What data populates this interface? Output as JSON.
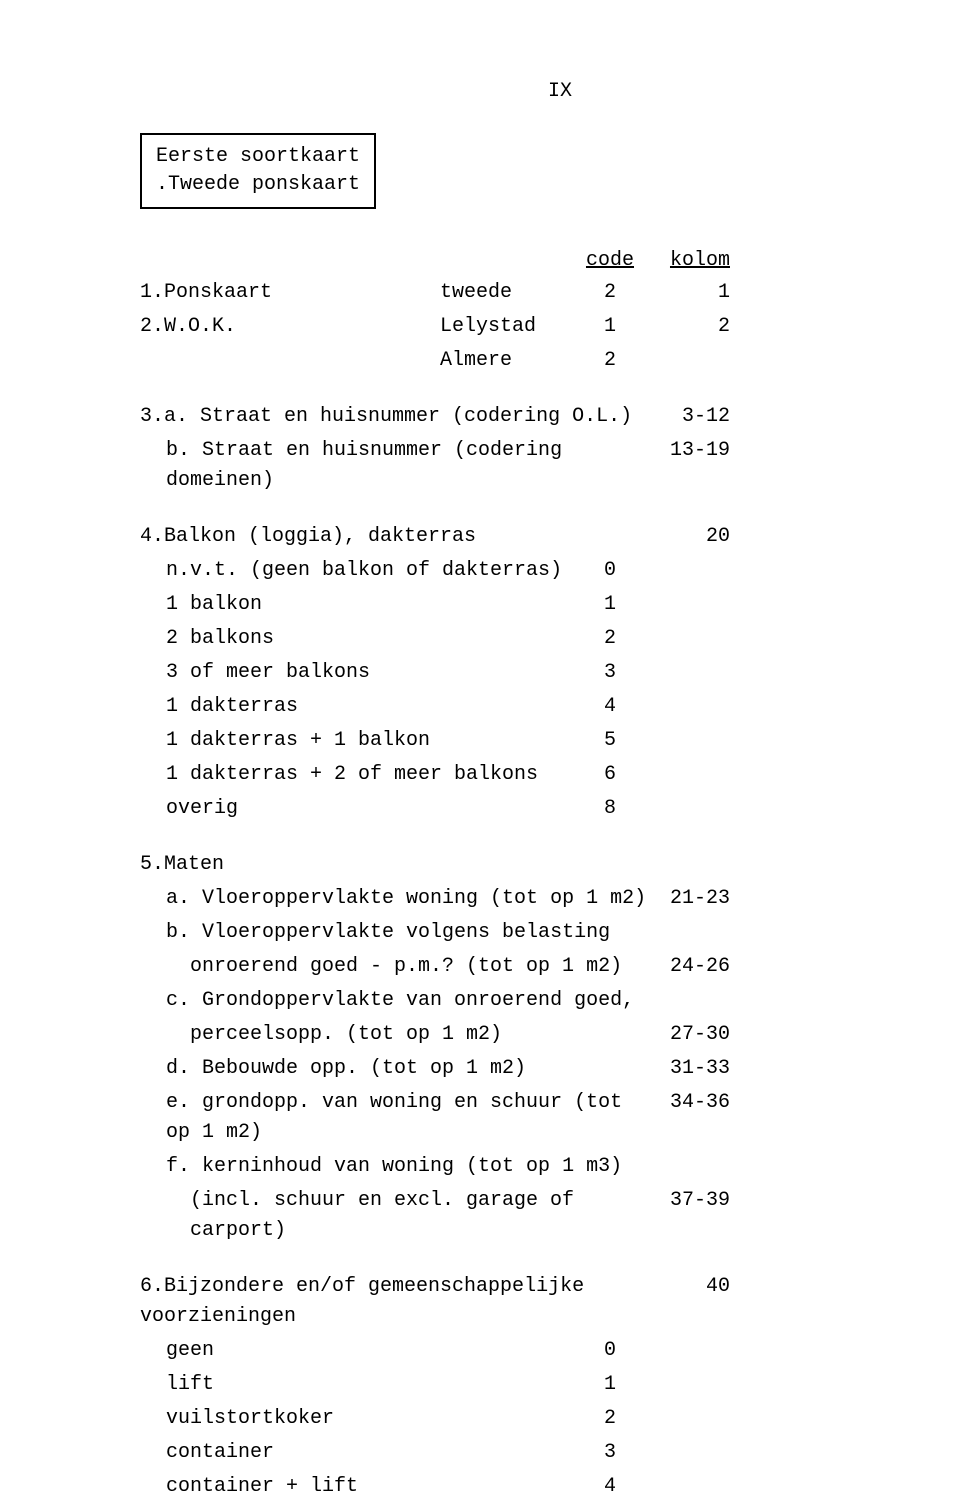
{
  "pageNumber": "IX",
  "box": {
    "line1": "Eerste soortkaart",
    "line2": ".Tweede ponskaart"
  },
  "headers": {
    "code": "code",
    "kolom": "kolom"
  },
  "section1": {
    "label": "1.Ponskaart",
    "value": "tweede",
    "code": "2",
    "kolom": "1"
  },
  "section2": {
    "label": "2.W.O.K.",
    "rows": [
      {
        "value": "Lelystad",
        "code": "1",
        "kolom": "2"
      },
      {
        "value": "Almere",
        "code": "2",
        "kolom": ""
      }
    ]
  },
  "section3": {
    "a": {
      "label": "3.a. Straat en huisnummer (codering O.L.)",
      "kolom": "3-12"
    },
    "b": {
      "label": "b. Straat en huisnummer (codering domeinen)",
      "kolom": "13-19"
    }
  },
  "section4": {
    "title": "4.Balkon (loggia), dakterras",
    "titleKolom": "20",
    "items": [
      {
        "label": "n.v.t. (geen balkon of dakterras)",
        "code": "0"
      },
      {
        "label": "1 balkon",
        "code": "1"
      },
      {
        "label": "2 balkons",
        "code": "2"
      },
      {
        "label": "3 of meer balkons",
        "code": "3"
      },
      {
        "label": "1 dakterras",
        "code": "4"
      },
      {
        "label": "1 dakterras + 1 balkon",
        "code": "5"
      },
      {
        "label": "1 dakterras + 2 of meer balkons",
        "code": "6"
      },
      {
        "label": "overig",
        "code": "8"
      }
    ]
  },
  "section5": {
    "title": "5.Maten",
    "items": [
      {
        "label": "a. Vloeroppervlakte woning (tot op 1 m2)",
        "kolom": "21-23"
      },
      {
        "label": "b. Vloeroppervlakte volgens belasting",
        "kolom": ""
      },
      {
        "label": "onroerend goed - p.m.? (tot op 1 m2)",
        "kolom": "24-26",
        "extraIndent": true
      },
      {
        "label": "c. Grondoppervlakte van onroerend goed,",
        "kolom": ""
      },
      {
        "label": "perceelsopp. (tot op 1 m2)",
        "kolom": "27-30",
        "extraIndent": true
      },
      {
        "label": "d. Bebouwde opp. (tot op 1 m2)",
        "kolom": "31-33"
      },
      {
        "label": "e. grondopp. van woning en schuur (tot op 1 m2)",
        "kolom": "34-36"
      },
      {
        "label": "f. kerninhoud van woning (tot op 1 m3)",
        "kolom": ""
      },
      {
        "label": "(incl. schuur en excl. garage of carport)",
        "kolom": "37-39",
        "extraIndent": true
      }
    ]
  },
  "section6": {
    "title": "6.Bijzondere en/of gemeenschappelijke voorzieningen",
    "titleKolom": "40",
    "items": [
      {
        "label": "geen",
        "code": "0"
      },
      {
        "label": "lift",
        "code": "1"
      },
      {
        "label": "vuilstortkoker",
        "code": "2"
      },
      {
        "label": "container",
        "code": "3"
      },
      {
        "label": "container + lift",
        "code": "4"
      }
    ]
  }
}
